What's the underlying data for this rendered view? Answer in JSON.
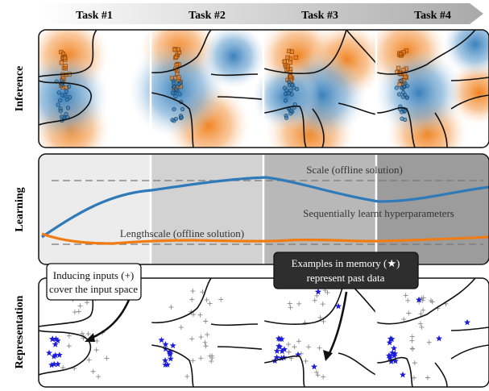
{
  "header": {
    "tasks": [
      "Task #1",
      "Task #2",
      "Task #3",
      "Task #4"
    ]
  },
  "rows": {
    "inference": "Inference",
    "learning": "Learning",
    "representation": "Representation"
  },
  "learning_panel": {
    "scale_label": "Scale (offline solution)",
    "lengthscale_label": "Lengthscale (offline solution)",
    "sequential_label": "Sequentially learnt hyperparameters"
  },
  "callouts": {
    "inducing": {
      "line1": "Inducing inputs (+)",
      "line2": "cover the input space"
    },
    "memory": {
      "line1": "Examples in memory (★)",
      "line2": "represent past data"
    }
  },
  "colors": {
    "blue": "#2f7ab8",
    "orange": "#f07c13",
    "star": "#1c1cd9",
    "dark_box": "#2e2e2e"
  }
}
